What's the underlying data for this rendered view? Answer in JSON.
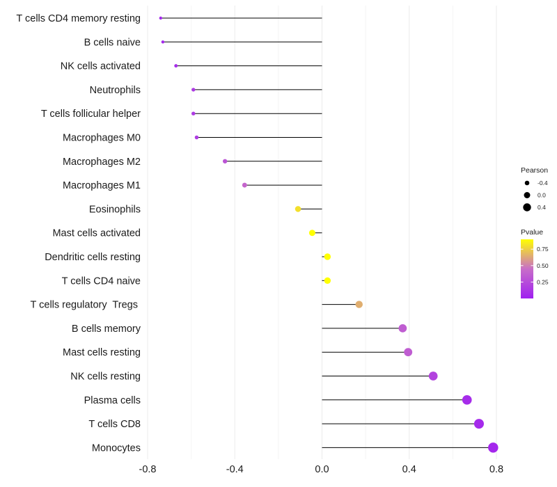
{
  "chart_data": {
    "type": "lollipop",
    "title": "",
    "xlabel": "",
    "ylabel": "",
    "xlim": [
      -0.8,
      0.8
    ],
    "xticks": [
      -0.8,
      -0.4,
      0.0,
      0.4,
      0.8
    ],
    "xtick_labels": [
      "-0.8",
      "-0.4",
      "0.0",
      "0.4",
      "0.8"
    ],
    "grid": true,
    "categories": [
      "T cells CD4 memory resting",
      "B cells naive",
      "NK cells activated",
      "Neutrophils",
      "T cells follicular helper",
      "Macrophages M0",
      "Macrophages M2",
      "Macrophages M1",
      "Eosinophils",
      "Mast cells activated",
      "Dendritic cells resting",
      "T cells CD4 naive",
      "T cells regulatory  Tregs ",
      "B cells memory",
      "Mast cells resting",
      "NK cells resting",
      "Plasma cells",
      "T cells CD8",
      "Monocytes"
    ],
    "pearson": [
      -0.74,
      -0.73,
      -0.67,
      -0.59,
      -0.59,
      -0.575,
      -0.445,
      -0.355,
      -0.11,
      -0.045,
      0.025,
      0.025,
      0.17,
      0.37,
      0.395,
      0.51,
      0.665,
      0.72,
      0.785
    ],
    "pvalue": [
      0.05,
      0.05,
      0.08,
      0.15,
      0.15,
      0.16,
      0.3,
      0.4,
      0.8,
      0.9,
      0.95,
      0.95,
      0.65,
      0.35,
      0.35,
      0.2,
      0.07,
      0.06,
      0.04
    ],
    "size_legend": {
      "title": "Pearson",
      "values": [
        -0.4,
        0.0,
        0.4
      ],
      "labels": [
        "-0.4",
        "0.0",
        "0.4"
      ]
    },
    "color_legend": {
      "title": "Pvalue",
      "range": [
        0.0,
        0.9
      ],
      "ticks": [
        0.75,
        0.5,
        0.25
      ],
      "labels": [
        "0.75",
        "0.50",
        "0.25"
      ],
      "low_color": "#a020f0",
      "mid_color": "#c86ec8",
      "high_color": "#ffff00"
    }
  }
}
